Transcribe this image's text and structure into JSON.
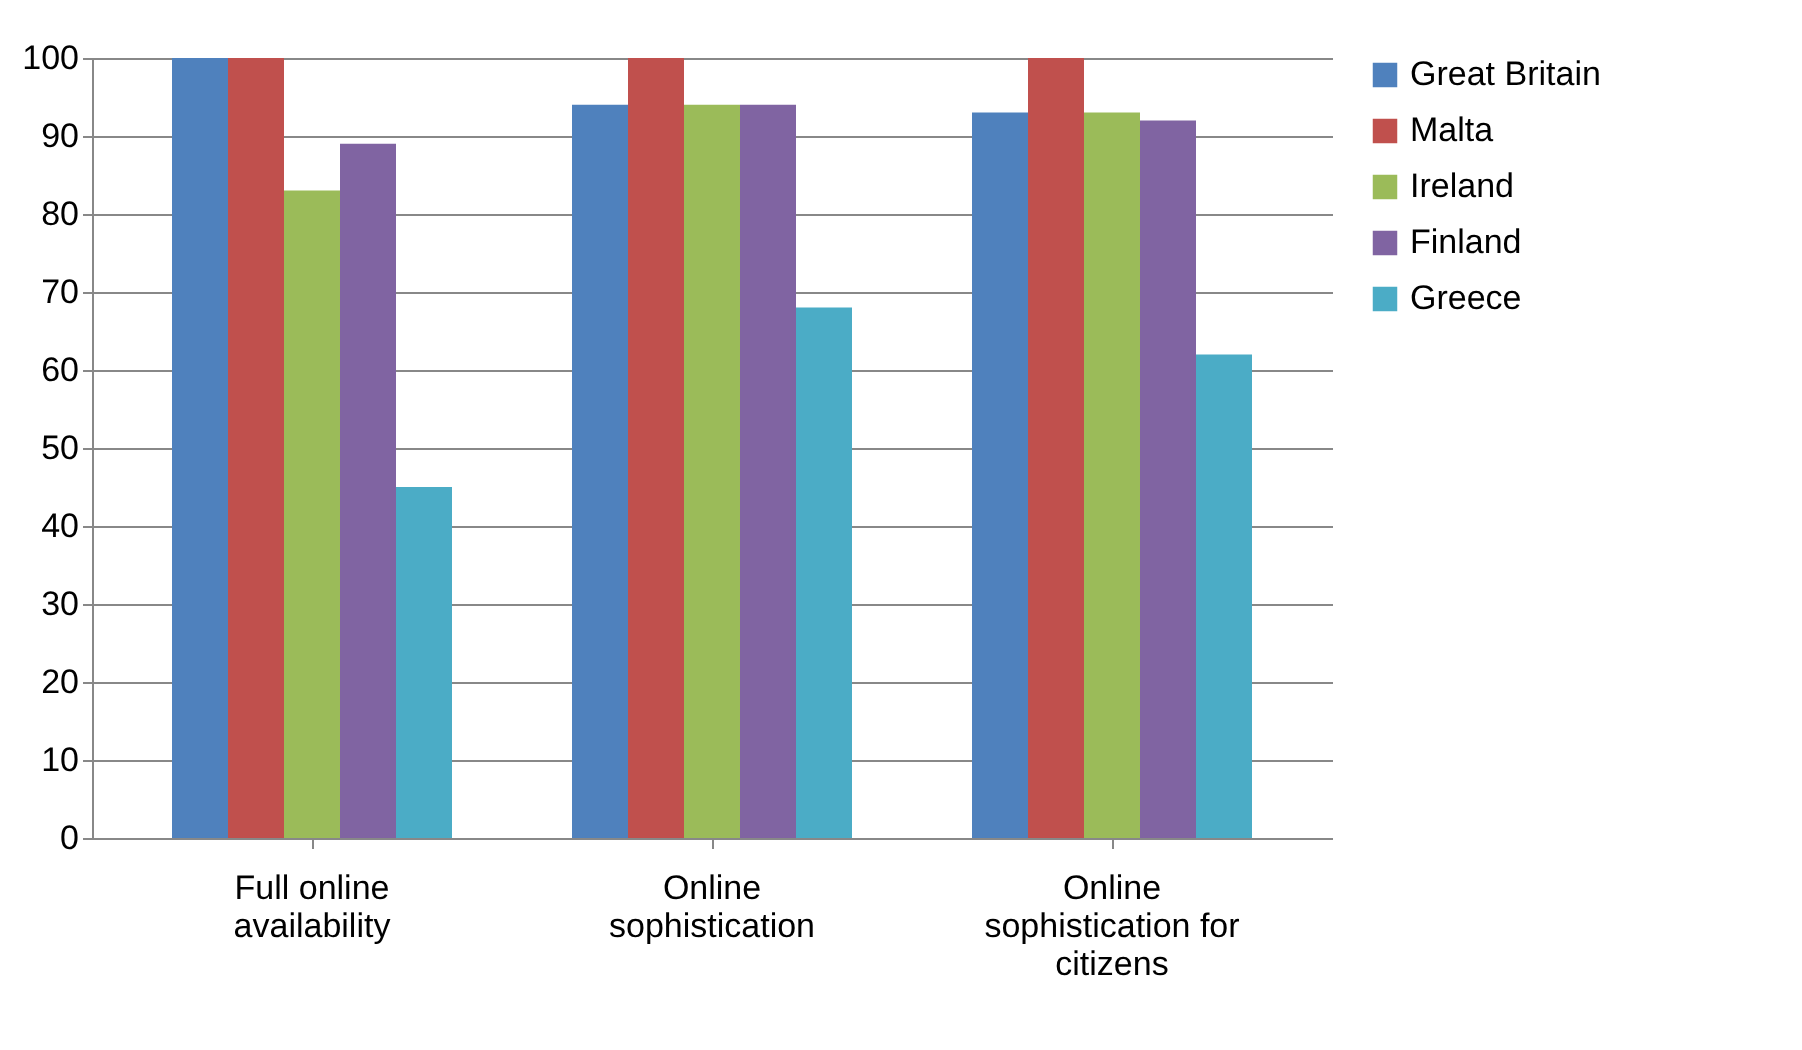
{
  "chart_data": {
    "type": "bar",
    "categories": [
      "Full online availability",
      "Online sophistication",
      "Online sophistication for citizens"
    ],
    "series": [
      {
        "name": "Great Britain",
        "color": "#4f81bd",
        "values": [
          100,
          94,
          93
        ]
      },
      {
        "name": "Malta",
        "color": "#c0504d",
        "values": [
          100,
          100,
          100
        ]
      },
      {
        "name": "Ireland",
        "color": "#9bbb59",
        "values": [
          83,
          94,
          93
        ]
      },
      {
        "name": "Finland",
        "color": "#8064a2",
        "values": [
          89,
          94,
          92
        ]
      },
      {
        "name": "Greece",
        "color": "#4bacc6",
        "values": [
          45,
          68,
          62
        ]
      }
    ],
    "ylim": [
      0,
      100
    ],
    "yticks": [
      0,
      10,
      20,
      30,
      40,
      50,
      60,
      70,
      80,
      90,
      100
    ],
    "grid": true,
    "legend": "right"
  }
}
